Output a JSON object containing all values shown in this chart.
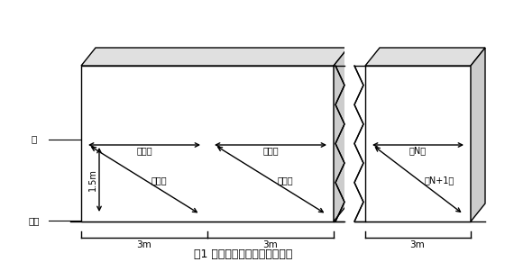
{
  "title": "图1 超长混凝土墙平整度测量图",
  "bg_color": "#ffffff",
  "wall_face_color": "#ffffff",
  "wall_top_color": "#e0e0e0",
  "wall_side_color": "#cccccc",
  "wall_edge_color": "#000000",
  "label_qiang": "墙",
  "label_dimian": "地面",
  "label_15m": "1.5m",
  "label_3m_1": "3m",
  "label_3m_2": "3m",
  "label_3m_3": "3m",
  "label_chi1": "第一尺",
  "label_chi2": "第二尺",
  "label_chi3": "第三尺",
  "label_chi4": "第四尺",
  "label_chiN": "第N尺",
  "label_chiN1": "第N+1尺",
  "title_fontsize": 9,
  "text_fontsize": 7.5,
  "lw": 1.0
}
